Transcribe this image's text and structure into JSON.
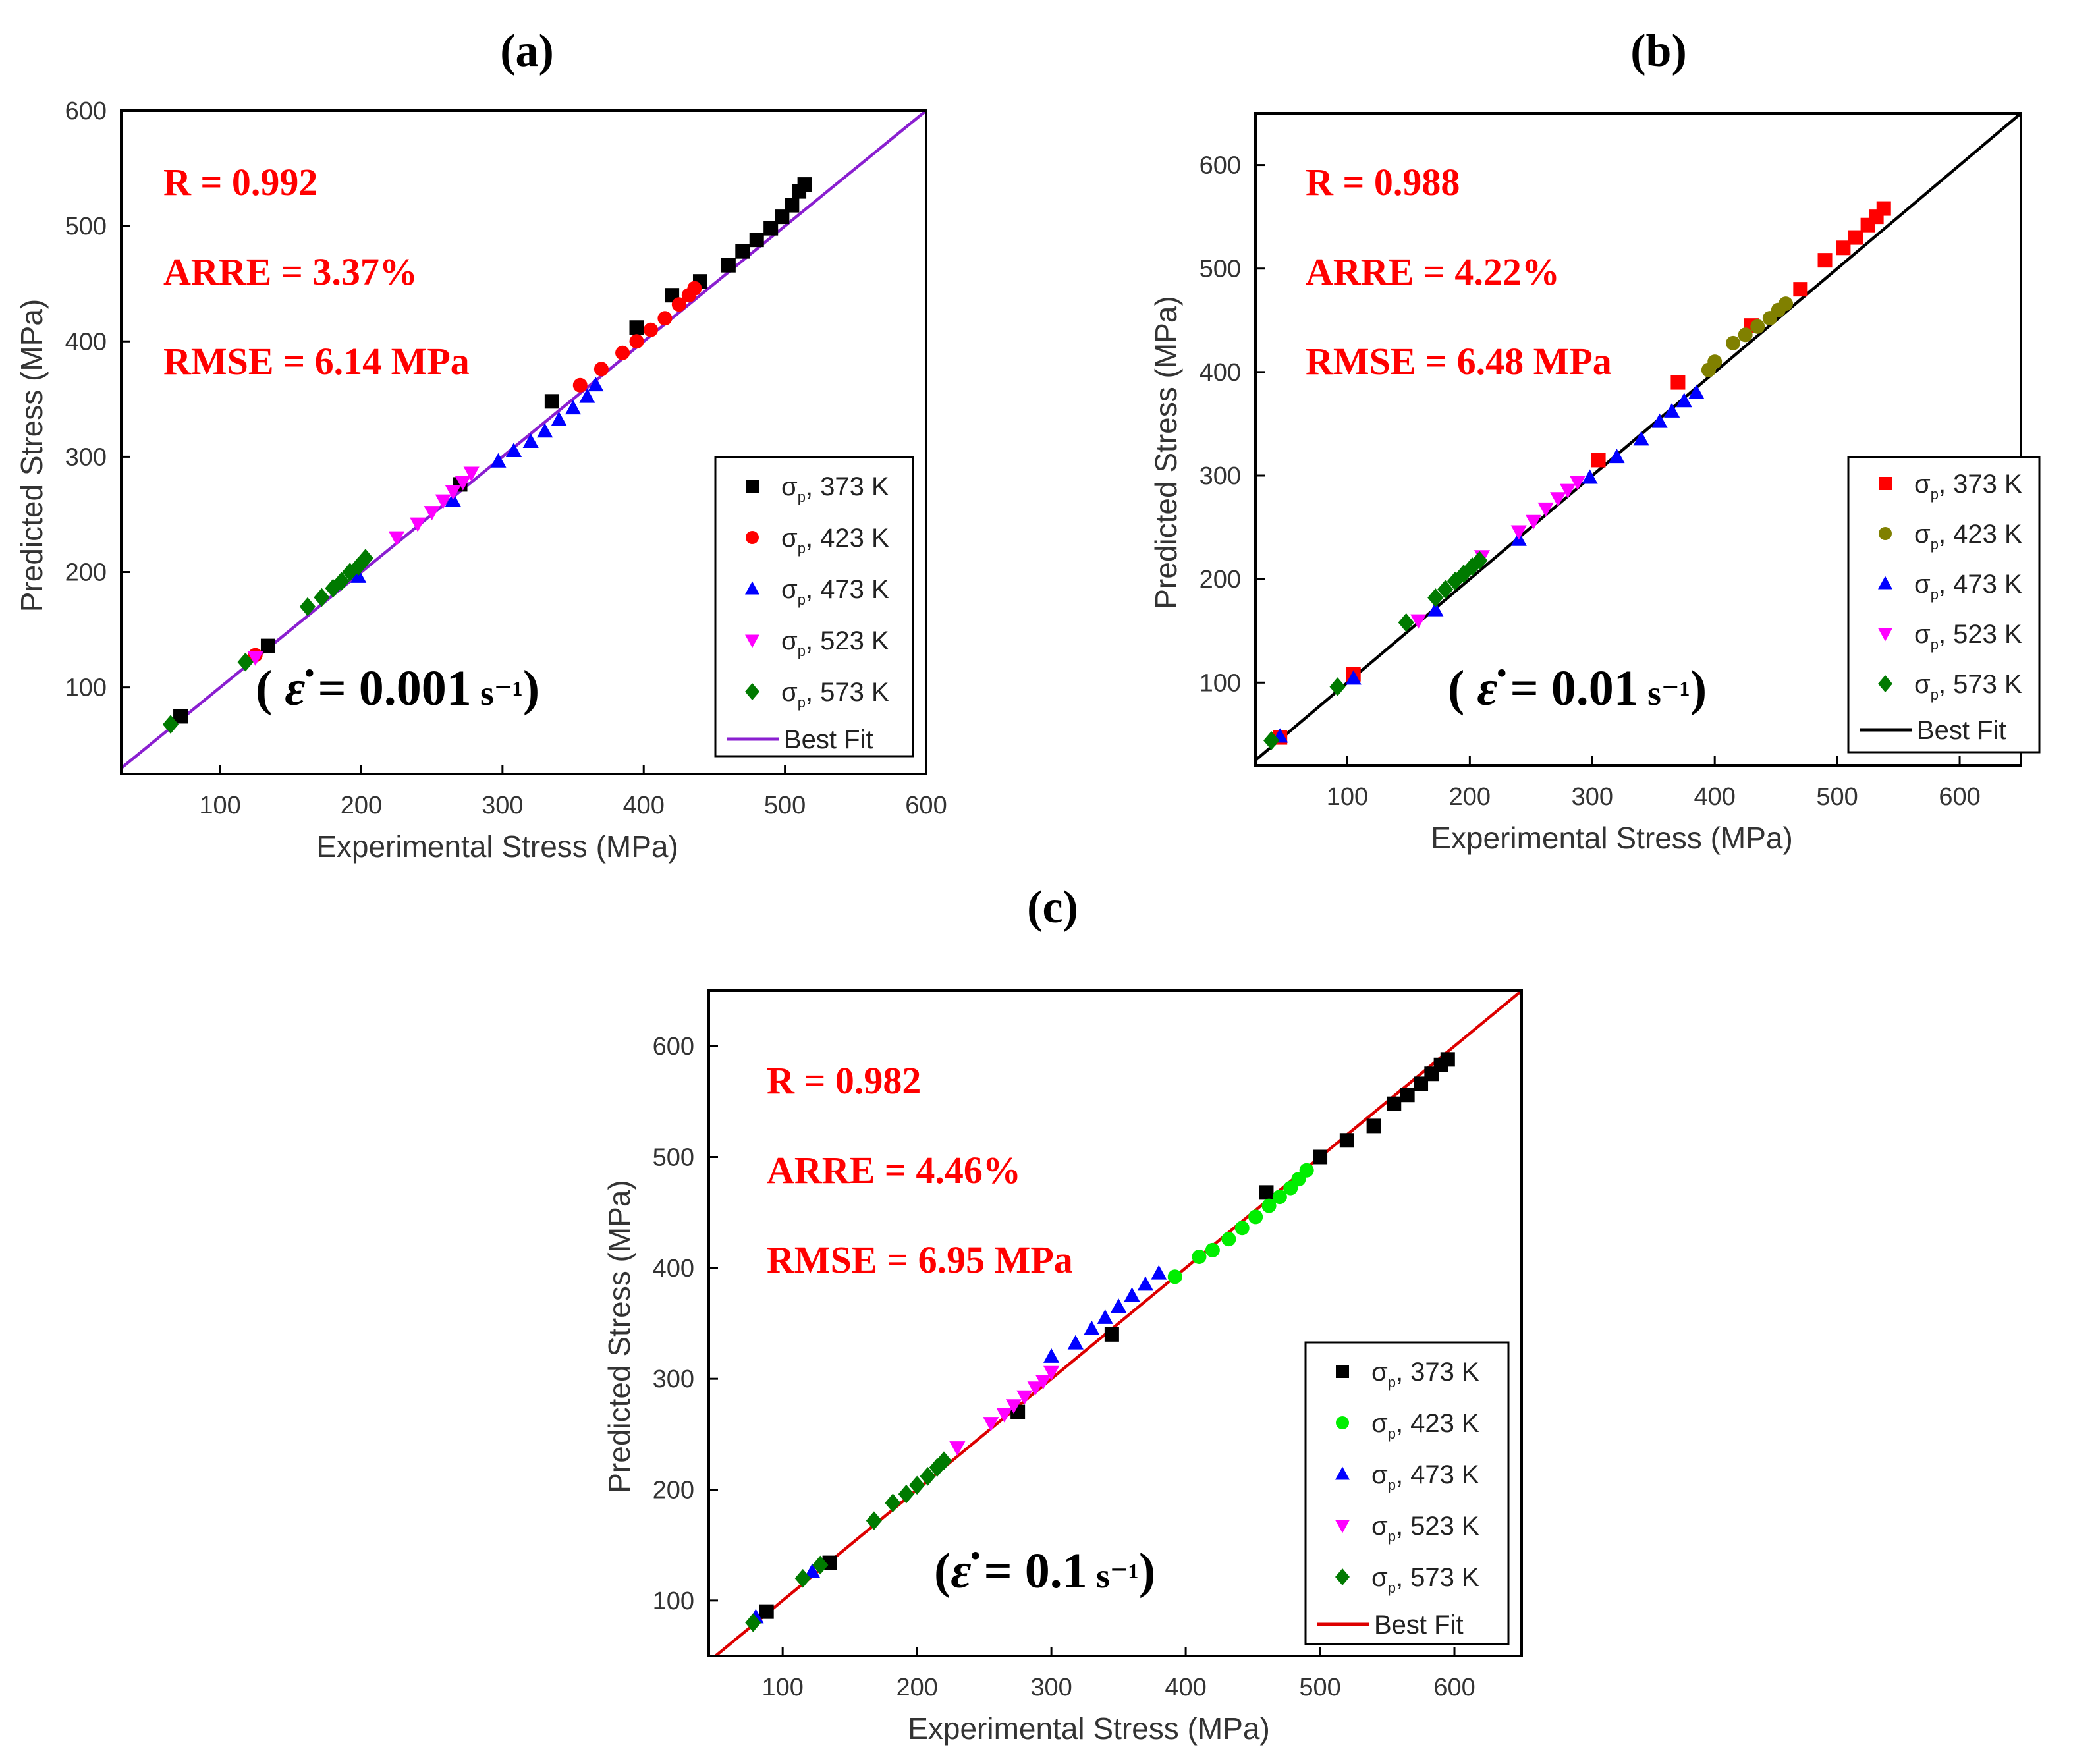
{
  "chart_data": [
    {
      "type": "scatter",
      "panel_label": "(a)",
      "title": "(a)",
      "xlabel": "Experimental Stress (MPa)",
      "ylabel": "Predicted Stress (MPa)",
      "xlim": [
        30,
        600
      ],
      "ylim": [
        25,
        600
      ],
      "x_ticks": [
        100,
        200,
        300,
        400,
        500,
        600
      ],
      "y_ticks": [
        100,
        200,
        300,
        400,
        500,
        600
      ],
      "stats": [
        "R = 0.992",
        "ARRE = 3.37%",
        "RMSE = 6.14 MPa"
      ],
      "strain_rate_label": {
        "prefix": "( ",
        "symbol": "ε̇",
        "eq": " = ",
        "value": "0.001",
        "unit": "s⁻¹",
        "suffix": ")"
      },
      "fit_color": "#8a1fd0",
      "fit_label": "Best Fit",
      "legend_position": "bottom-right",
      "series": [
        {
          "name": "σp, 373 K",
          "label_sym": "σ",
          "label_sub": "p",
          "label_rest": ", 373 K",
          "marker": "square",
          "color": "#000000",
          "points": [
            [
              72,
              75
            ],
            [
              134,
              136
            ],
            [
              270,
              276
            ],
            [
              335,
              348
            ],
            [
              395,
              412
            ],
            [
              420,
              440
            ],
            [
              440,
              452
            ],
            [
              460,
              466
            ],
            [
              470,
              478
            ],
            [
              480,
              488
            ],
            [
              490,
              498
            ],
            [
              498,
              508
            ],
            [
              505,
              518
            ],
            [
              510,
              530
            ],
            [
              514,
              536
            ]
          ]
        },
        {
          "name": "σp, 423 K",
          "label_sym": "σ",
          "label_sub": "p",
          "label_rest": ", 423 K",
          "marker": "circle",
          "color": "#ff0000",
          "points": [
            [
              125,
              128
            ],
            [
              355,
              362
            ],
            [
              370,
              376
            ],
            [
              385,
              390
            ],
            [
              395,
              400
            ],
            [
              405,
              410
            ],
            [
              415,
              420
            ],
            [
              425,
              432
            ],
            [
              432,
              440
            ],
            [
              436,
              446
            ]
          ]
        },
        {
          "name": "σp, 473 K",
          "label_sym": "σ",
          "label_sub": "p",
          "label_rest": ", 473 K",
          "marker": "triangle-up",
          "color": "#0000ff",
          "points": [
            [
              198,
              196
            ],
            [
              265,
              262
            ],
            [
              297,
              296
            ],
            [
              308,
              305
            ],
            [
              320,
              313
            ],
            [
              330,
              322
            ],
            [
              340,
              332
            ],
            [
              350,
              342
            ],
            [
              360,
              352
            ],
            [
              366,
              362
            ]
          ]
        },
        {
          "name": "σp, 523 K",
          "label_sym": "σ",
          "label_sub": "p",
          "label_rest": ", 523 K",
          "marker": "triangle-down",
          "color": "#ff00ff",
          "points": [
            [
              125,
              126
            ],
            [
              225,
              230
            ],
            [
              240,
              242
            ],
            [
              250,
              252
            ],
            [
              258,
              262
            ],
            [
              265,
              270
            ],
            [
              272,
              278
            ],
            [
              278,
              286
            ]
          ]
        },
        {
          "name": "σp, 573 K",
          "label_sym": "σ",
          "label_sub": "p",
          "label_rest": ", 573 K",
          "marker": "diamond",
          "color": "#007a00",
          "points": [
            [
              65,
              68
            ],
            [
              118,
              122
            ],
            [
              162,
              170
            ],
            [
              172,
              178
            ],
            [
              180,
              186
            ],
            [
              186,
              192
            ],
            [
              192,
              200
            ],
            [
              198,
              205
            ],
            [
              203,
              212
            ]
          ]
        }
      ]
    },
    {
      "type": "scatter",
      "panel_label": "(b)",
      "title": "(b)",
      "xlabel": "Experimental Stress (MPa)",
      "ylabel": "Predicted Stress (MPa)",
      "xlim": [
        25,
        650
      ],
      "ylim": [
        20,
        650
      ],
      "x_ticks": [
        100,
        200,
        300,
        400,
        500,
        600
      ],
      "y_ticks": [
        100,
        200,
        300,
        400,
        500,
        600
      ],
      "stats": [
        "R = 0.988",
        "ARRE = 4.22%",
        "RMSE = 6.48 MPa"
      ],
      "strain_rate_label": {
        "prefix": "( ",
        "symbol": "ε̇",
        "eq": " = ",
        "value": "0.01",
        "unit": "s⁻¹",
        "suffix": ")"
      },
      "fit_color": "#000000",
      "fit_label": "Best Fit",
      "legend_position": "bottom-right",
      "series": [
        {
          "name": "σp, 373 K",
          "label_sym": "σ",
          "label_sub": "p",
          "label_rest": ", 373 K",
          "marker": "square",
          "color": "#ff0000",
          "points": [
            [
              45,
              47
            ],
            [
              105,
              108
            ],
            [
              305,
              315
            ],
            [
              370,
              390
            ],
            [
              430,
              445
            ],
            [
              470,
              480
            ],
            [
              490,
              508
            ],
            [
              505,
              520
            ],
            [
              515,
              530
            ],
            [
              525,
              542
            ],
            [
              532,
              550
            ],
            [
              538,
              558
            ]
          ]
        },
        {
          "name": "σp, 423 K",
          "label_sym": "σ",
          "label_sub": "p",
          "label_rest": ", 423 K",
          "marker": "circle",
          "color": "#808000",
          "points": [
            [
              395,
              402
            ],
            [
              400,
              410
            ],
            [
              415,
              428
            ],
            [
              425,
              436
            ],
            [
              435,
              444
            ],
            [
              445,
              452
            ],
            [
              452,
              460
            ],
            [
              458,
              466
            ]
          ]
        },
        {
          "name": "σp, 473 K",
          "label_sym": "σ",
          "label_sub": "p",
          "label_rest": ", 473 K",
          "marker": "triangle-up",
          "color": "#0000ff",
          "points": [
            [
              45,
              48
            ],
            [
              105,
              104
            ],
            [
              172,
              170
            ],
            [
              240,
              238
            ],
            [
              298,
              298
            ],
            [
              320,
              318
            ],
            [
              340,
              335
            ],
            [
              355,
              352
            ],
            [
              365,
              362
            ],
            [
              375,
              372
            ],
            [
              385,
              380
            ]
          ]
        },
        {
          "name": "σp, 523 K",
          "label_sym": "σ",
          "label_sub": "p",
          "label_rest": ", 523 K",
          "marker": "triangle-down",
          "color": "#ff00ff",
          "points": [
            [
              158,
              160
            ],
            [
              210,
              222
            ],
            [
              240,
              246
            ],
            [
              252,
              256
            ],
            [
              262,
              268
            ],
            [
              272,
              278
            ],
            [
              280,
              286
            ],
            [
              288,
              294
            ]
          ]
        },
        {
          "name": "σp, 573 K",
          "label_sym": "σ",
          "label_sub": "p",
          "label_rest": ", 573 K",
          "marker": "diamond",
          "color": "#007a00",
          "points": [
            [
              38,
              44
            ],
            [
              92,
              96
            ],
            [
              148,
              158
            ],
            [
              172,
              182
            ],
            [
              180,
              190
            ],
            [
              188,
              198
            ],
            [
              195,
              205
            ],
            [
              202,
              212
            ],
            [
              208,
              218
            ]
          ]
        }
      ]
    },
    {
      "type": "scatter",
      "panel_label": "(c)",
      "title": "(c)",
      "xlabel": "Experimental Stress (MPa)",
      "ylabel": "Predicted Stress (MPa)",
      "xlim": [
        45,
        650
      ],
      "ylim": [
        50,
        650
      ],
      "x_ticks": [
        100,
        200,
        300,
        400,
        500,
        600
      ],
      "y_ticks": [
        100,
        200,
        300,
        400,
        500,
        600
      ],
      "stats": [
        "R = 0.982",
        "ARRE = 4.46%",
        "RMSE = 6.95 MPa"
      ],
      "strain_rate_label": {
        "prefix": "(",
        "symbol": "ε̇",
        "eq": " = ",
        "value": "0.1",
        "unit": "s⁻¹",
        "suffix": ")"
      },
      "fit_color": "#dd0000",
      "fit_label": "Best Fit",
      "legend_position": "bottom-right",
      "series": [
        {
          "name": "σp, 373 K",
          "label_sym": "σ",
          "label_sub": "p",
          "label_rest": ", 373 K",
          "marker": "square",
          "color": "#000000",
          "points": [
            [
              88,
              90
            ],
            [
              135,
              134
            ],
            [
              275,
              270
            ],
            [
              345,
              340
            ],
            [
              460,
              468
            ],
            [
              500,
              500
            ],
            [
              520,
              515
            ],
            [
              540,
              528
            ],
            [
              555,
              548
            ],
            [
              565,
              556
            ],
            [
              575,
              566
            ],
            [
              583,
              575
            ],
            [
              590,
              583
            ],
            [
              595,
              588
            ]
          ]
        },
        {
          "name": "σp, 423 K",
          "label_sym": "σ",
          "label_sub": "p",
          "label_rest": ", 423 K",
          "marker": "circle",
          "color": "#00ee00",
          "points": [
            [
              392,
              392
            ],
            [
              410,
              410
            ],
            [
              420,
              416
            ],
            [
              432,
              426
            ],
            [
              442,
              436
            ],
            [
              452,
              446
            ],
            [
              462,
              456
            ],
            [
              470,
              464
            ],
            [
              478,
              472
            ],
            [
              484,
              480
            ],
            [
              490,
              488
            ]
          ]
        },
        {
          "name": "σp, 473 K",
          "label_sym": "σ",
          "label_sub": "p",
          "label_rest": ", 473 K",
          "marker": "triangle-up",
          "color": "#0000ff",
          "points": [
            [
              80,
              85
            ],
            [
              122,
              126
            ],
            [
              300,
              320
            ],
            [
              318,
              332
            ],
            [
              330,
              345
            ],
            [
              340,
              355
            ],
            [
              350,
              365
            ],
            [
              360,
              375
            ],
            [
              370,
              385
            ],
            [
              380,
              395
            ]
          ]
        },
        {
          "name": "σp, 523 K",
          "label_sym": "σ",
          "label_sub": "p",
          "label_rest": ", 523 K",
          "marker": "triangle-down",
          "color": "#ff00ff",
          "points": [
            [
              230,
              238
            ],
            [
              255,
              260
            ],
            [
              265,
              268
            ],
            [
              272,
              276
            ],
            [
              280,
              284
            ],
            [
              288,
              292
            ],
            [
              294,
              298
            ],
            [
              300,
              306
            ]
          ]
        },
        {
          "name": "σp, 573 K",
          "label_sym": "σ",
          "label_sub": "p",
          "label_rest": ", 573 K",
          "marker": "diamond",
          "color": "#007a00",
          "points": [
            [
              78,
              80
            ],
            [
              115,
              120
            ],
            [
              128,
              132
            ],
            [
              168,
              172
            ],
            [
              182,
              188
            ],
            [
              192,
              196
            ],
            [
              200,
              204
            ],
            [
              208,
              212
            ],
            [
              215,
              220
            ],
            [
              220,
              226
            ]
          ]
        }
      ]
    }
  ]
}
